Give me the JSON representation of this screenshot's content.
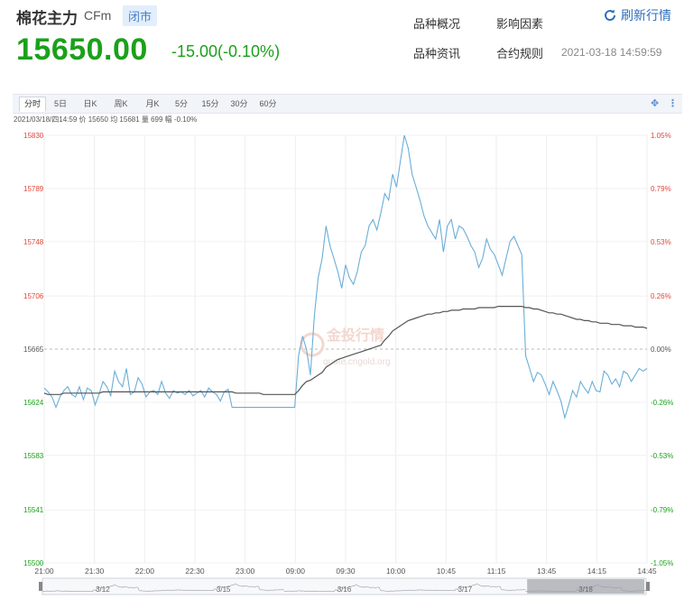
{
  "header": {
    "name": "棉花主力",
    "code": "CFm",
    "status": "闭市",
    "price": "15650.00",
    "change": "-15.00(-0.10%)",
    "links": [
      "品种概况",
      "影响因素",
      "品种资讯",
      "合约规则"
    ],
    "refresh_label": "刷新行情",
    "timestamp": "2021-03-18 14:59:59"
  },
  "toolbar": {
    "tabs": [
      "分时",
      "5日",
      "日K",
      "周K",
      "月K",
      "5分",
      "15分",
      "30分",
      "60分"
    ],
    "active_tab": "分时",
    "icons": [
      "fullscreen-icon",
      "more-icon"
    ]
  },
  "info_line": "2021/03/18/四14:59  价 15650  均 15681  量 699  幅 -0.10%",
  "watermark": {
    "text": "金投行情",
    "url": "quote.cngold.org"
  },
  "colors": {
    "price_line": "#6aaed8",
    "avg_line": "#555555",
    "up": "#e0463a",
    "down": "#1aa11a",
    "accent": "#2f6fbf"
  },
  "chart_data": {
    "type": "line",
    "title": "",
    "xlabel": "",
    "ylabel": "",
    "ylim": [
      15500,
      15830
    ],
    "prev_close": 15665,
    "y_ticks": [
      "15830",
      "15789",
      "15748",
      "15706",
      "15665",
      "15624",
      "15583",
      "15541",
      "15500"
    ],
    "y_ticks_right": [
      "1.05%",
      "0.79%",
      "0.53%",
      "0.26%",
      "0.00%",
      "-0.26%",
      "-0.53%",
      "-0.79%",
      "-1.05%"
    ],
    "x_ticks": [
      "21:00",
      "21:30",
      "22:00",
      "22:30",
      "23:00",
      "09:00",
      "09:30",
      "10:00",
      "10:45",
      "11:15",
      "13:45",
      "14:15",
      "14:45"
    ],
    "navigator_ticks": [
      "3/12",
      "3/15",
      "3/16",
      "3/17",
      "3/18"
    ],
    "series": [
      {
        "values": [
          15635,
          15632,
          15628,
          15620,
          15628,
          15633,
          15636,
          15630,
          15628,
          15636,
          15626,
          15635,
          15633,
          15622,
          15630,
          15640,
          15636,
          15629,
          15648,
          15640,
          15636,
          15650,
          15630,
          15632,
          15643,
          15638,
          15628,
          15632,
          15633,
          15630,
          15640,
          15631,
          15627,
          15633,
          15631,
          15632,
          15630,
          15633,
          15629,
          15631,
          15633,
          15628,
          15635,
          15632,
          15630,
          15625,
          15632,
          15634,
          15620,
          15620,
          15620,
          15620,
          15620,
          15620,
          15620,
          15620,
          15620,
          15620,
          15620,
          15620,
          15620,
          15620,
          15620,
          15620,
          15620,
          15660,
          15675,
          15665,
          15645,
          15690,
          15720,
          15735,
          15760,
          15745,
          15735,
          15725,
          15712,
          15730,
          15720,
          15715,
          15725,
          15740,
          15745,
          15760,
          15765,
          15757,
          15770,
          15785,
          15780,
          15800,
          15790,
          15810,
          15830,
          15820,
          15800,
          15790,
          15780,
          15768,
          15760,
          15755,
          15750,
          15765,
          15740,
          15760,
          15765,
          15750,
          15760,
          15758,
          15752,
          15745,
          15740,
          15728,
          15735,
          15750,
          15742,
          15738,
          15730,
          15722,
          15735,
          15748,
          15752,
          15745,
          15738,
          15660,
          15650,
          15640,
          15647,
          15645,
          15638,
          15630,
          15640,
          15633,
          15625,
          15612,
          15622,
          15633,
          15628,
          15640,
          15635,
          15631,
          15640,
          15633,
          15632,
          15648,
          15645,
          15638,
          15642,
          15636,
          15648,
          15646,
          15640,
          15645,
          15650,
          15648,
          15650
        ]
      },
      {
        "values": [
          15631,
          15630,
          15630,
          15630,
          15630,
          15631,
          15631,
          15631,
          15631,
          15631,
          15631,
          15631,
          15631,
          15631,
          15631,
          15632,
          15632,
          15632,
          15632,
          15632,
          15632,
          15632,
          15632,
          15632,
          15632,
          15632,
          15632,
          15632,
          15632,
          15632,
          15632,
          15632,
          15632,
          15632,
          15632,
          15632,
          15632,
          15632,
          15632,
          15632,
          15632,
          15632,
          15632,
          15632,
          15632,
          15632,
          15632,
          15632,
          15632,
          15631,
          15631,
          15631,
          15631,
          15631,
          15631,
          15631,
          15630,
          15630,
          15630,
          15630,
          15630,
          15630,
          15630,
          15630,
          15630,
          15633,
          15637,
          15640,
          15641,
          15643,
          15645,
          15647,
          15651,
          15653,
          15655,
          15657,
          15658,
          15659,
          15660,
          15661,
          15662,
          15663,
          15664,
          15665,
          15666,
          15667,
          15668,
          15672,
          15675,
          15679,
          15681,
          15683,
          15685,
          15687,
          15688,
          15689,
          15690,
          15691,
          15692,
          15692,
          15693,
          15693,
          15694,
          15694,
          15695,
          15695,
          15695,
          15696,
          15696,
          15696,
          15696,
          15697,
          15697,
          15697,
          15697,
          15697,
          15698,
          15698,
          15698,
          15698,
          15698,
          15698,
          15698,
          15697,
          15697,
          15696,
          15696,
          15695,
          15694,
          15693,
          15693,
          15692,
          15692,
          15691,
          15690,
          15689,
          15688,
          15688,
          15687,
          15687,
          15686,
          15686,
          15685,
          15685,
          15685,
          15684,
          15684,
          15684,
          15683,
          15683,
          15683,
          15682,
          15682,
          15682,
          15681
        ]
      }
    ]
  }
}
